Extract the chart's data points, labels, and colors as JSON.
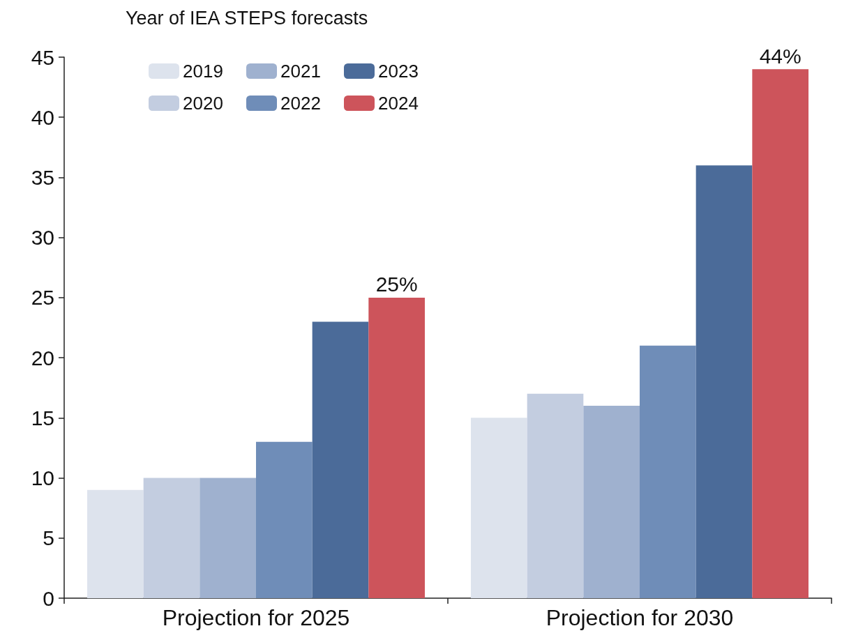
{
  "chart_data": {
    "type": "bar",
    "legend_title": "Year of IEA STEPS forecasts",
    "categories": [
      "Projection for 2025",
      "Projection for 2030"
    ],
    "series": [
      {
        "name": "2019",
        "color": "#dde3ed",
        "values": [
          9,
          15
        ]
      },
      {
        "name": "2020",
        "color": "#c3cde0",
        "values": [
          10,
          17
        ]
      },
      {
        "name": "2021",
        "color": "#9fb1cf",
        "values": [
          10,
          16
        ]
      },
      {
        "name": "2022",
        "color": "#6f8db8",
        "values": [
          13,
          21
        ]
      },
      {
        "name": "2023",
        "color": "#4b6b99",
        "values": [
          23,
          36
        ]
      },
      {
        "name": "2024",
        "color": "#cd545b",
        "values": [
          25,
          44
        ],
        "value_labels": [
          "25%",
          "44%"
        ]
      }
    ],
    "ylim": [
      0,
      45
    ],
    "yticks": [
      0,
      5,
      10,
      15,
      20,
      25,
      30,
      35,
      40,
      45
    ],
    "grid": false,
    "legend": "top left"
  }
}
